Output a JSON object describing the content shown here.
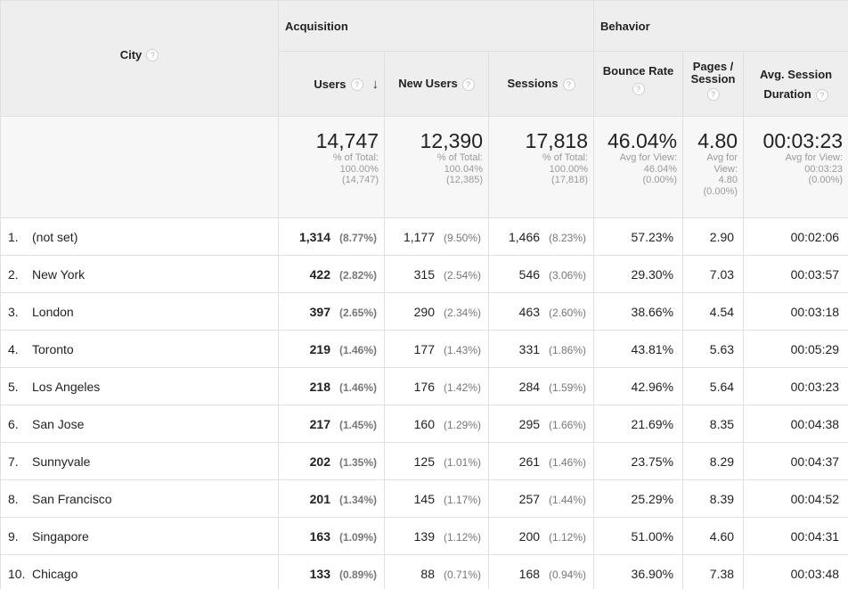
{
  "groups": {
    "acquisition": "Acquisition",
    "behavior": "Behavior"
  },
  "columns": {
    "city": "City",
    "users": "Users",
    "new_users": "New Users",
    "sessions": "Sessions",
    "bounce_rate": "Bounce Rate",
    "pages_session_1": "Pages /",
    "pages_session_2": "Session",
    "avg_duration_1": "Avg. Session",
    "avg_duration_2": "Duration",
    "help": "?",
    "sort_arrow": "↓"
  },
  "totals": {
    "users": {
      "value": "14,747",
      "l1": "% of Total:",
      "l2": "100.00%",
      "l3": "(14,747)"
    },
    "new_users": {
      "value": "12,390",
      "l1": "% of Total:",
      "l2": "100.04%",
      "l3": "(12,385)"
    },
    "sessions": {
      "value": "17,818",
      "l1": "% of Total:",
      "l2": "100.00%",
      "l3": "(17,818)"
    },
    "bounce_rate": {
      "value": "46.04%",
      "l1": "Avg for View:",
      "l2": "46.04%",
      "l3": "(0.00%)"
    },
    "pages_session": {
      "value": "4.80",
      "l1": "Avg for",
      "l2": "View:",
      "l3": "4.80",
      "l4": "(0.00%)"
    },
    "avg_duration": {
      "value": "00:03:23",
      "l1": "Avg for View:",
      "l2": "00:03:23",
      "l3": "(0.00%)"
    }
  },
  "rows": [
    {
      "num": "1.",
      "city": "(not set)",
      "users": "1,314",
      "users_pct": "(8.77%)",
      "new_users": "1,177",
      "new_users_pct": "(9.50%)",
      "sessions": "1,466",
      "sessions_pct": "(8.23%)",
      "bounce": "57.23%",
      "pages": "2.90",
      "duration": "00:02:06"
    },
    {
      "num": "2.",
      "city": "New York",
      "users": "422",
      "users_pct": "(2.82%)",
      "new_users": "315",
      "new_users_pct": "(2.54%)",
      "sessions": "546",
      "sessions_pct": "(3.06%)",
      "bounce": "29.30%",
      "pages": "7.03",
      "duration": "00:03:57"
    },
    {
      "num": "3.",
      "city": "London",
      "users": "397",
      "users_pct": "(2.65%)",
      "new_users": "290",
      "new_users_pct": "(2.34%)",
      "sessions": "463",
      "sessions_pct": "(2.60%)",
      "bounce": "38.66%",
      "pages": "4.54",
      "duration": "00:03:18"
    },
    {
      "num": "4.",
      "city": "Toronto",
      "users": "219",
      "users_pct": "(1.46%)",
      "new_users": "177",
      "new_users_pct": "(1.43%)",
      "sessions": "331",
      "sessions_pct": "(1.86%)",
      "bounce": "43.81%",
      "pages": "5.63",
      "duration": "00:05:29"
    },
    {
      "num": "5.",
      "city": "Los Angeles",
      "users": "218",
      "users_pct": "(1.46%)",
      "new_users": "176",
      "new_users_pct": "(1.42%)",
      "sessions": "284",
      "sessions_pct": "(1.59%)",
      "bounce": "42.96%",
      "pages": "5.64",
      "duration": "00:03:23"
    },
    {
      "num": "6.",
      "city": "San Jose",
      "users": "217",
      "users_pct": "(1.45%)",
      "new_users": "160",
      "new_users_pct": "(1.29%)",
      "sessions": "295",
      "sessions_pct": "(1.66%)",
      "bounce": "21.69%",
      "pages": "8.35",
      "duration": "00:04:38"
    },
    {
      "num": "7.",
      "city": "Sunnyvale",
      "users": "202",
      "users_pct": "(1.35%)",
      "new_users": "125",
      "new_users_pct": "(1.01%)",
      "sessions": "261",
      "sessions_pct": "(1.46%)",
      "bounce": "23.75%",
      "pages": "8.29",
      "duration": "00:04:37"
    },
    {
      "num": "8.",
      "city": "San Francisco",
      "users": "201",
      "users_pct": "(1.34%)",
      "new_users": "145",
      "new_users_pct": "(1.17%)",
      "sessions": "257",
      "sessions_pct": "(1.44%)",
      "bounce": "25.29%",
      "pages": "8.39",
      "duration": "00:04:52"
    },
    {
      "num": "9.",
      "city": "Singapore",
      "users": "163",
      "users_pct": "(1.09%)",
      "new_users": "139",
      "new_users_pct": "(1.12%)",
      "sessions": "200",
      "sessions_pct": "(1.12%)",
      "bounce": "51.00%",
      "pages": "4.60",
      "duration": "00:04:31"
    },
    {
      "num": "10.",
      "city": "Chicago",
      "users": "133",
      "users_pct": "(0.89%)",
      "new_users": "88",
      "new_users_pct": "(0.71%)",
      "sessions": "168",
      "sessions_pct": "(0.94%)",
      "bounce": "36.90%",
      "pages": "7.38",
      "duration": "00:03:48"
    }
  ]
}
